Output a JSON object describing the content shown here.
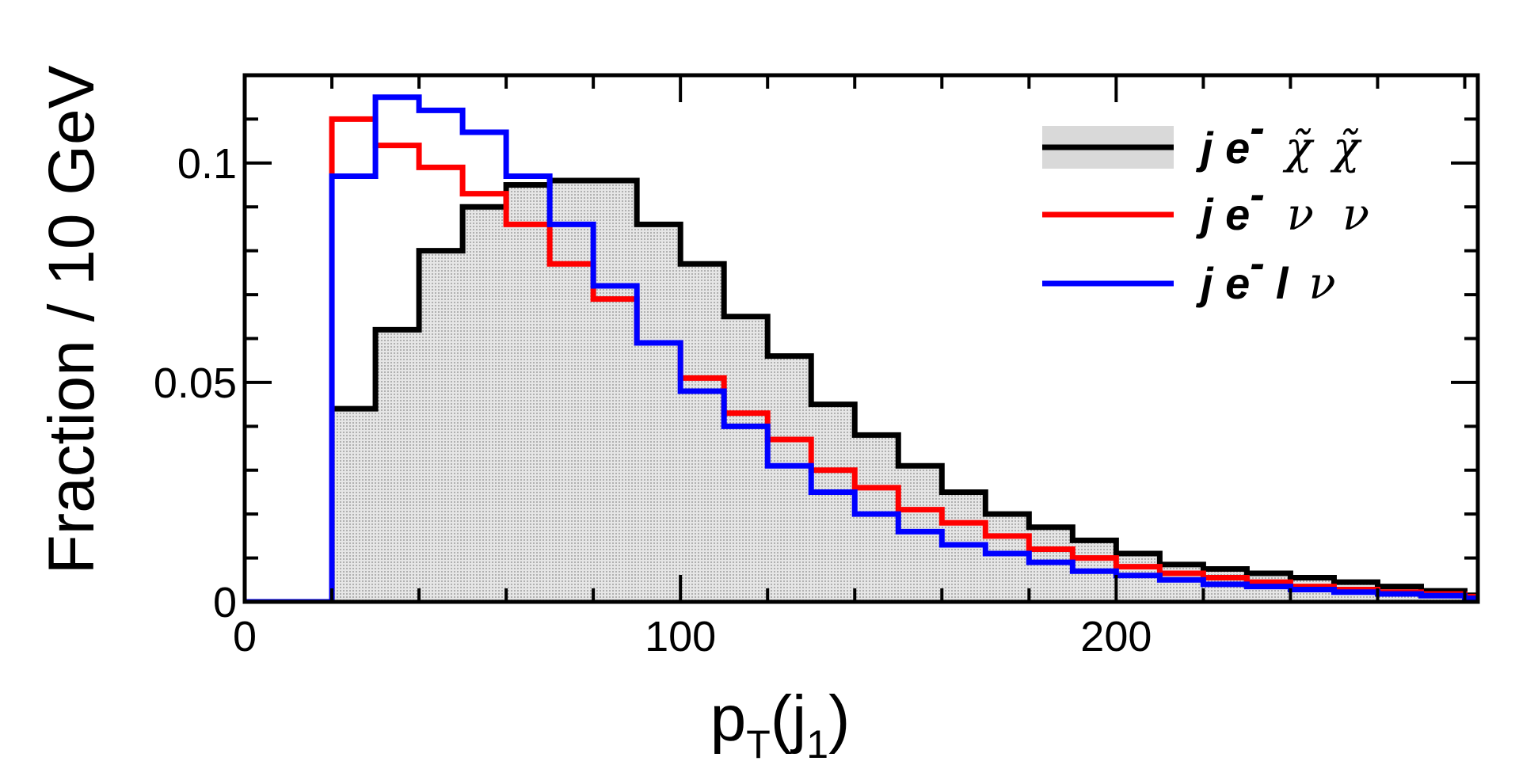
{
  "chart_data": {
    "type": "step",
    "title": "",
    "xlabel": {
      "main": "p",
      "sub1": "T",
      "paren_open": "(j",
      "sub2": "1",
      "paren_close": ")"
    },
    "ylabel": "Fraction / 10 GeV",
    "xlim": [
      0,
      283
    ],
    "ylim": [
      0,
      0.12
    ],
    "bin_width": 10,
    "x_ticks": [
      0,
      100,
      200
    ],
    "x_tick_labels": [
      "0",
      "100",
      "200"
    ],
    "y_ticks": [
      0,
      0.05,
      0.1
    ],
    "y_tick_labels": [
      "0",
      "0.05",
      "0.1"
    ],
    "legend_position": "top-right",
    "series": [
      {
        "name": "je⁻ χ̃ χ̃",
        "color": "#000000",
        "filled": true,
        "fill": "#d9d9d9",
        "values": [
          0,
          0,
          0.044,
          0.062,
          0.08,
          0.09,
          0.095,
          0.096,
          0.096,
          0.086,
          0.077,
          0.065,
          0.056,
          0.045,
          0.038,
          0.031,
          0.025,
          0.02,
          0.017,
          0.014,
          0.011,
          0.0085,
          0.0075,
          0.0065,
          0.0055,
          0.0045,
          0.0035,
          0.0025,
          0.0015
        ]
      },
      {
        "name": "je⁻ ν ν",
        "color": "#ff0000",
        "filled": false,
        "values": [
          0,
          0,
          0.11,
          0.104,
          0.099,
          0.093,
          0.086,
          0.077,
          0.069,
          0.059,
          0.051,
          0.043,
          0.037,
          0.03,
          0.026,
          0.021,
          0.018,
          0.015,
          0.012,
          0.01,
          0.008,
          0.0065,
          0.0055,
          0.0045,
          0.0035,
          0.0028,
          0.0022,
          0.0018,
          0.0012
        ]
      },
      {
        "name": "je⁻ l ν",
        "color": "#0000ff",
        "filled": false,
        "values": [
          0,
          0,
          0.097,
          0.115,
          0.112,
          0.107,
          0.097,
          0.086,
          0.072,
          0.059,
          0.048,
          0.04,
          0.031,
          0.025,
          0.02,
          0.016,
          0.013,
          0.011,
          0.009,
          0.007,
          0.006,
          0.005,
          0.004,
          0.0035,
          0.0028,
          0.0022,
          0.0018,
          0.0014,
          0.0008
        ]
      }
    ]
  }
}
